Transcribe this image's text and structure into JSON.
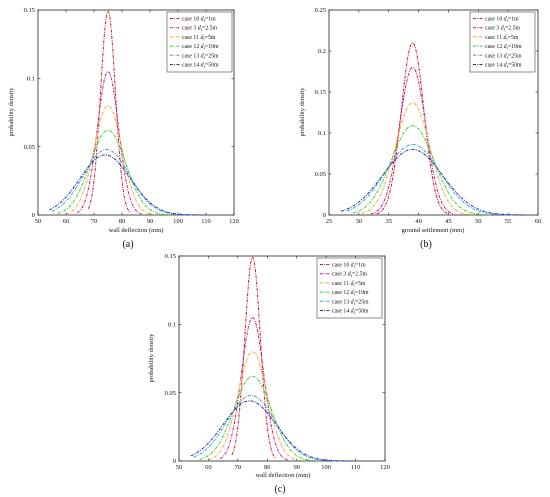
{
  "chart_data": [
    {
      "type": "line",
      "panel_label": "(a)",
      "xlabel": "wall deflection (mm)",
      "ylabel": "probability density",
      "xlim": [
        50,
        120
      ],
      "ylim": [
        0,
        0.15
      ],
      "xticks": [
        "50",
        "60",
        "70",
        "80",
        "90",
        "100",
        "110",
        "120"
      ],
      "yticks": [
        "0",
        "0.05",
        "0.1",
        "0.15"
      ],
      "legend_position": "top-right",
      "series": [
        {
          "name": "case 10",
          "param": "d",
          "sub": "f",
          "value": "=1m",
          "color": "#d7191c",
          "mean": 75,
          "std": 2.65,
          "peak": 0.149,
          "xrange": [
            68,
            83
          ]
        },
        {
          "name": "case 3",
          "param": "d",
          "sub": "f",
          "value": "=2.5m",
          "color": "#c51b8a",
          "mean": 75,
          "std": 3.8,
          "peak": 0.105,
          "xrange": [
            64,
            87
          ]
        },
        {
          "name": "case 11",
          "param": "d",
          "sub": "f",
          "value": "=5m",
          "color": "#f0a830",
          "mean": 75,
          "std": 5.0,
          "peak": 0.08,
          "xrange": [
            60,
            92
          ]
        },
        {
          "name": "case 12",
          "param": "d",
          "sub": "f",
          "value": "=10m",
          "color": "#33cc33",
          "mean": 75,
          "std": 6.4,
          "peak": 0.062,
          "xrange": [
            57,
            98
          ]
        },
        {
          "name": "case 13",
          "param": "d",
          "sub": "f",
          "value": "=25m",
          "color": "#3aa0d8",
          "mean": 74.5,
          "std": 8.2,
          "peak": 0.048,
          "xrange": [
            55,
            105
          ]
        },
        {
          "name": "case 14",
          "param": "d",
          "sub": "f",
          "value": "=50m",
          "color": "#2233aa",
          "mean": 74,
          "std": 9.0,
          "peak": 0.044,
          "xrange": [
            54,
            110
          ]
        }
      ]
    },
    {
      "type": "line",
      "panel_label": "(b)",
      "xlabel": "ground settlement (mm)",
      "ylabel": "probability density",
      "xlim": [
        25,
        60
      ],
      "ylim": [
        0,
        0.25
      ],
      "xticks": [
        "25",
        "30",
        "35",
        "40",
        "45",
        "50",
        "55",
        "60"
      ],
      "yticks": [
        "0",
        "0.05",
        "0.1",
        "0.15",
        "0.2",
        "0.25"
      ],
      "legend_position": "top-right",
      "series": [
        {
          "name": "case 10",
          "param": "d",
          "sub": "f",
          "value": "=1m",
          "color": "#d7191c",
          "mean": 39,
          "std": 1.9,
          "peak": 0.21,
          "xrange": [
            33,
            45
          ]
        },
        {
          "name": "case 3",
          "param": "d",
          "sub": "f",
          "value": "=2.5m",
          "color": "#c51b8a",
          "mean": 39,
          "std": 2.2,
          "peak": 0.18,
          "xrange": [
            32,
            46
          ]
        },
        {
          "name": "case 11",
          "param": "d",
          "sub": "f",
          "value": "=5m",
          "color": "#f0a830",
          "mean": 39,
          "std": 2.9,
          "peak": 0.137,
          "xrange": [
            30.5,
            49
          ]
        },
        {
          "name": "case 12",
          "param": "d",
          "sub": "f",
          "value": "=10m",
          "color": "#33cc33",
          "mean": 39,
          "std": 3.6,
          "peak": 0.109,
          "xrange": [
            29,
            52
          ]
        },
        {
          "name": "case 13",
          "param": "d",
          "sub": "f",
          "value": "=25m",
          "color": "#3aa0d8",
          "mean": 39,
          "std": 4.6,
          "peak": 0.086,
          "xrange": [
            28,
            56
          ]
        },
        {
          "name": "case 14",
          "param": "d",
          "sub": "f",
          "value": "=50m",
          "color": "#2233aa",
          "mean": 39,
          "std": 5.0,
          "peak": 0.08,
          "xrange": [
            27,
            58
          ]
        }
      ]
    },
    {
      "type": "line",
      "panel_label": "(c)",
      "xlabel": "wall deflection (mm)",
      "ylabel": "probability density",
      "xlim": [
        50,
        120
      ],
      "ylim": [
        0,
        0.15
      ],
      "xticks": [
        "50",
        "60",
        "70",
        "80",
        "90",
        "100",
        "110",
        "120"
      ],
      "yticks": [
        "0",
        "0.05",
        "0.1",
        "0.15"
      ],
      "legend_position": "top-right",
      "series": [
        {
          "name": "case 10",
          "param": "d",
          "sub": "f",
          "value": "=1m",
          "color": "#d7191c",
          "mean": 75,
          "std": 2.65,
          "peak": 0.149,
          "xrange": [
            68,
            83
          ]
        },
        {
          "name": "case 3",
          "param": "d",
          "sub": "f",
          "value": "=2.5m",
          "color": "#c51b8a",
          "mean": 75,
          "std": 3.8,
          "peak": 0.105,
          "xrange": [
            64,
            87
          ]
        },
        {
          "name": "case 11",
          "param": "d",
          "sub": "f",
          "value": "=5m",
          "color": "#f0a830",
          "mean": 75,
          "std": 5.0,
          "peak": 0.08,
          "xrange": [
            60,
            92
          ]
        },
        {
          "name": "case 12",
          "param": "d",
          "sub": "f",
          "value": "=10m",
          "color": "#33cc33",
          "mean": 75,
          "std": 6.4,
          "peak": 0.062,
          "xrange": [
            57,
            98
          ]
        },
        {
          "name": "case 13",
          "param": "d",
          "sub": "f",
          "value": "=25m",
          "color": "#3aa0d8",
          "mean": 74.5,
          "std": 8.2,
          "peak": 0.048,
          "xrange": [
            55,
            105
          ]
        },
        {
          "name": "case 14",
          "param": "d",
          "sub": "f",
          "value": "=50m",
          "color": "#2233aa",
          "mean": 74,
          "std": 9.0,
          "peak": 0.044,
          "xrange": [
            54,
            110
          ]
        }
      ]
    }
  ]
}
